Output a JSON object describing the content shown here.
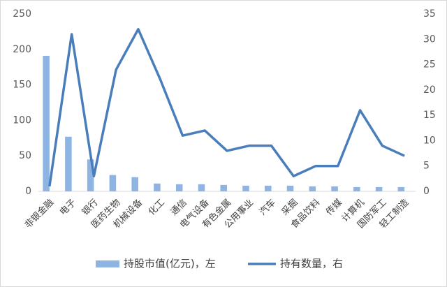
{
  "chart_data": {
    "type": "bar-line",
    "categories": [
      "非银金融",
      "电子",
      "银行",
      "医药生物",
      "机械设备",
      "化工",
      "通信",
      "电气设备",
      "有色金属",
      "公用事业",
      "汽车",
      "采掘",
      "食品饮料",
      "传媒",
      "计算机",
      "国防军工",
      "轻工制造"
    ],
    "series": [
      {
        "name": "持股市值(亿元)，左",
        "type": "bar",
        "color": "#8eb4e3",
        "values": [
          191,
          77,
          45,
          23,
          20,
          11,
          10,
          10,
          9,
          8,
          8,
          8,
          7,
          7,
          6,
          6,
          6
        ]
      },
      {
        "name": "持有数量，右",
        "type": "line",
        "axis": "y2",
        "color": "#4a7ebb",
        "values": [
          1,
          31,
          3,
          24,
          32,
          22,
          11,
          12,
          8,
          9,
          9,
          3,
          5,
          5,
          16,
          9,
          7
        ]
      }
    ],
    "ylim": [
      0,
      250
    ],
    "yticks": [
      0,
      50,
      100,
      150,
      200,
      250
    ],
    "y2lim": [
      0,
      35
    ],
    "y2ticks": [
      0,
      5,
      10,
      15,
      20,
      25,
      30,
      35
    ]
  }
}
